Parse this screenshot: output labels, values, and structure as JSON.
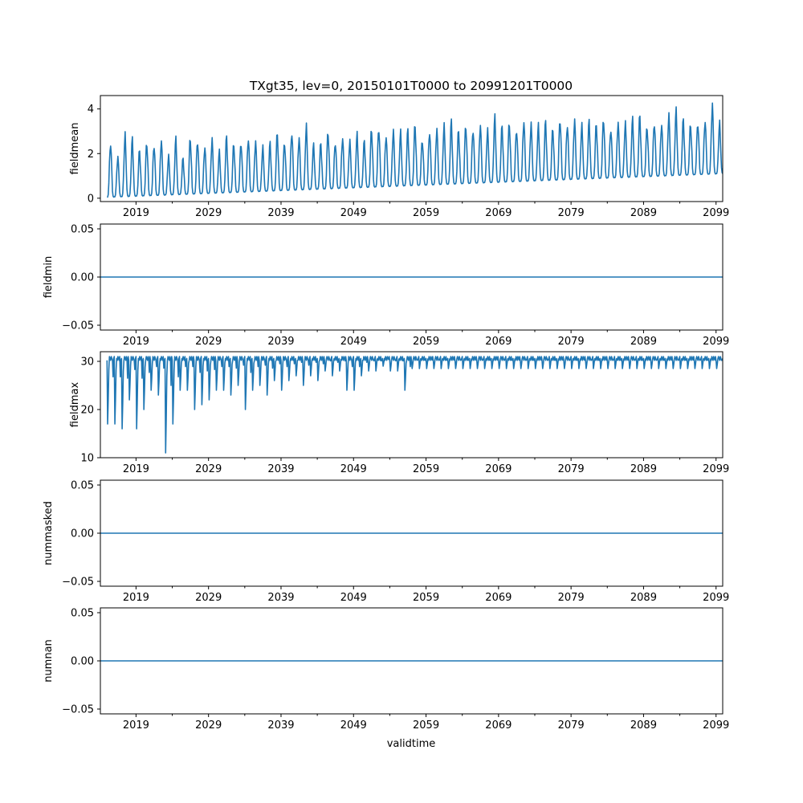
{
  "figure": {
    "title": "TXgt35, lev=0, 20150101T0000 to 20991201T0000",
    "xlabel": "validtime",
    "x_tick_labels": [
      "2019",
      "2029",
      "2039",
      "2049",
      "2059",
      "2069",
      "2079",
      "2089",
      "2099"
    ],
    "line_color": "#1f77b4"
  },
  "chart_data": [
    {
      "type": "line",
      "ylabel": "fieldmean",
      "ylim": [
        -0.15,
        4.6
      ],
      "yticks": [
        0,
        2,
        4
      ],
      "ytick_labels": [
        "0",
        "2",
        "4"
      ],
      "xlim": [
        "2014-02",
        "2099-12"
      ],
      "grid": false,
      "series": [
        {
          "frequency": "monthly, 2015-01 to 2099-12",
          "seasonal_peak_by_year": [
            {
              "year": 2015,
              "peak": 2.7
            },
            {
              "year": 2016,
              "peak": 2.0
            },
            {
              "year": 2017,
              "peak": 3.0
            },
            {
              "year": 2018,
              "peak": 2.8
            },
            {
              "year": 2019,
              "peak": 2.3
            },
            {
              "year": 2020,
              "peak": 2.7
            },
            {
              "year": 2021,
              "peak": 2.6
            },
            {
              "year": 2022,
              "peak": 2.8
            },
            {
              "year": 2023,
              "peak": 2.0
            },
            {
              "year": 2024,
              "peak": 2.8
            },
            {
              "year": 2025,
              "peak": 1.9
            },
            {
              "year": 2026,
              "peak": 2.9
            },
            {
              "year": 2027,
              "peak": 2.8
            },
            {
              "year": 2028,
              "peak": 2.5
            },
            {
              "year": 2029,
              "peak": 2.8
            },
            {
              "year": 2030,
              "peak": 2.2
            },
            {
              "year": 2031,
              "peak": 2.9
            },
            {
              "year": 2032,
              "peak": 2.6
            },
            {
              "year": 2033,
              "peak": 2.7
            },
            {
              "year": 2034,
              "peak": 2.9
            },
            {
              "year": 2035,
              "peak": 2.7
            },
            {
              "year": 2036,
              "peak": 2.4
            },
            {
              "year": 2037,
              "peak": 2.6
            },
            {
              "year": 2038,
              "peak": 3.1
            },
            {
              "year": 2039,
              "peak": 2.7
            },
            {
              "year": 2040,
              "peak": 3.2
            },
            {
              "year": 2041,
              "peak": 2.9
            },
            {
              "year": 2042,
              "peak": 3.4
            },
            {
              "year": 2043,
              "peak": 2.5
            },
            {
              "year": 2044,
              "peak": 2.6
            },
            {
              "year": 2045,
              "peak": 3.2
            },
            {
              "year": 2046,
              "peak": 2.7
            },
            {
              "year": 2047,
              "peak": 2.9
            },
            {
              "year": 2048,
              "peak": 2.7
            },
            {
              "year": 2049,
              "peak": 3.0
            },
            {
              "year": 2050,
              "peak": 2.7
            },
            {
              "year": 2051,
              "peak": 3.3
            },
            {
              "year": 2052,
              "peak": 3.4
            },
            {
              "year": 2053,
              "peak": 3.0
            },
            {
              "year": 2054,
              "peak": 3.2
            },
            {
              "year": 2055,
              "peak": 3.1
            },
            {
              "year": 2056,
              "peak": 3.2
            },
            {
              "year": 2057,
              "peak": 3.5
            },
            {
              "year": 2058,
              "peak": 2.8
            },
            {
              "year": 2059,
              "peak": 3.2
            },
            {
              "year": 2060,
              "peak": 3.3
            },
            {
              "year": 2061,
              "peak": 3.4
            },
            {
              "year": 2062,
              "peak": 3.6
            },
            {
              "year": 2063,
              "peak": 3.2
            },
            {
              "year": 2064,
              "peak": 3.5
            },
            {
              "year": 2065,
              "peak": 3.3
            },
            {
              "year": 2066,
              "peak": 3.5
            },
            {
              "year": 2067,
              "peak": 3.2
            },
            {
              "year": 2068,
              "peak": 3.8
            },
            {
              "year": 2069,
              "peak": 3.4
            },
            {
              "year": 2070,
              "peak": 3.6
            },
            {
              "year": 2071,
              "peak": 3.3
            },
            {
              "year": 2072,
              "peak": 3.7
            },
            {
              "year": 2073,
              "peak": 3.5
            },
            {
              "year": 2074,
              "peak": 3.4
            },
            {
              "year": 2075,
              "peak": 3.6
            },
            {
              "year": 2076,
              "peak": 3.3
            },
            {
              "year": 2077,
              "peak": 3.8
            },
            {
              "year": 2078,
              "peak": 3.5
            },
            {
              "year": 2079,
              "peak": 3.7
            },
            {
              "year": 2080,
              "peak": 3.4
            },
            {
              "year": 2081,
              "peak": 3.6
            },
            {
              "year": 2082,
              "peak": 3.5
            },
            {
              "year": 2083,
              "peak": 3.8
            },
            {
              "year": 2084,
              "peak": 3.3
            },
            {
              "year": 2085,
              "peak": 3.6
            },
            {
              "year": 2086,
              "peak": 3.5
            },
            {
              "year": 2087,
              "peak": 3.7
            },
            {
              "year": 2088,
              "peak": 3.9
            },
            {
              "year": 2089,
              "peak": 3.4
            },
            {
              "year": 2090,
              "peak": 3.6
            },
            {
              "year": 2091,
              "peak": 3.5
            },
            {
              "year": 2092,
              "peak": 3.9
            },
            {
              "year": 2093,
              "peak": 4.1
            },
            {
              "year": 2094,
              "peak": 3.7
            },
            {
              "year": 2095,
              "peak": 3.5
            },
            {
              "year": 2096,
              "peak": 3.6
            },
            {
              "year": 2097,
              "peak": 3.7
            },
            {
              "year": 2098,
              "peak": 4.4
            },
            {
              "year": 2099,
              "peak": 3.5
            }
          ],
          "seasonal_trough_start": 0.05,
          "seasonal_trough_end": 1.1
        }
      ]
    },
    {
      "type": "line",
      "ylabel": "fieldmin",
      "ylim": [
        -0.055,
        0.055
      ],
      "yticks": [
        -0.05,
        0,
        0.05
      ],
      "ytick_labels": [
        "−0.05",
        "0.00",
        "0.05"
      ],
      "xlim": [
        "2014-02",
        "2099-12"
      ],
      "grid": false,
      "series": [
        {
          "constant": 0
        }
      ]
    },
    {
      "type": "line",
      "ylabel": "fieldmax",
      "ylim": [
        10,
        32
      ],
      "yticks": [
        10,
        20,
        30
      ],
      "ytick_labels": [
        "10",
        "20",
        "30"
      ],
      "xlim": [
        "2014-02",
        "2099-12"
      ],
      "grid": false,
      "series": [
        {
          "frequency": "monthly, 2015-01 to 2099-12",
          "typical_high": 31,
          "annual_minimum_by_year": [
            {
              "year": 2015,
              "min": 17
            },
            {
              "year": 2016,
              "min": 17
            },
            {
              "year": 2017,
              "min": 16
            },
            {
              "year": 2018,
              "min": 22
            },
            {
              "year": 2019,
              "min": 16
            },
            {
              "year": 2020,
              "min": 20
            },
            {
              "year": 2021,
              "min": 24
            },
            {
              "year": 2022,
              "min": 23
            },
            {
              "year": 2023,
              "min": 11
            },
            {
              "year": 2024,
              "min": 17
            },
            {
              "year": 2025,
              "min": 24
            },
            {
              "year": 2026,
              "min": 24
            },
            {
              "year": 2027,
              "min": 20
            },
            {
              "year": 2028,
              "min": 21
            },
            {
              "year": 2029,
              "min": 22
            },
            {
              "year": 2030,
              "min": 24
            },
            {
              "year": 2031,
              "min": 24
            },
            {
              "year": 2032,
              "min": 23
            },
            {
              "year": 2033,
              "min": 25
            },
            {
              "year": 2034,
              "min": 20
            },
            {
              "year": 2035,
              "min": 24
            },
            {
              "year": 2036,
              "min": 25
            },
            {
              "year": 2037,
              "min": 23
            },
            {
              "year": 2038,
              "min": 26
            },
            {
              "year": 2039,
              "min": 24
            },
            {
              "year": 2040,
              "min": 26
            },
            {
              "year": 2041,
              "min": 27
            },
            {
              "year": 2042,
              "min": 25
            },
            {
              "year": 2043,
              "min": 27
            },
            {
              "year": 2044,
              "min": 26
            },
            {
              "year": 2045,
              "min": 28
            },
            {
              "year": 2046,
              "min": 27
            },
            {
              "year": 2047,
              "min": 28
            },
            {
              "year": 2048,
              "min": 24
            },
            {
              "year": 2049,
              "min": 24
            },
            {
              "year": 2050,
              "min": 27
            },
            {
              "year": 2051,
              "min": 28
            },
            {
              "year": 2052,
              "min": 28
            },
            {
              "year": 2053,
              "min": 29
            },
            {
              "year": 2054,
              "min": 28
            },
            {
              "year": 2055,
              "min": 28
            },
            {
              "year": 2056,
              "min": 24
            }
          ],
          "annual_minimum_after_2056": 28.5
        }
      ]
    },
    {
      "type": "line",
      "ylabel": "nummasked",
      "ylim": [
        -0.055,
        0.055
      ],
      "yticks": [
        -0.05,
        0,
        0.05
      ],
      "ytick_labels": [
        "−0.05",
        "0.00",
        "0.05"
      ],
      "xlim": [
        "2014-02",
        "2099-12"
      ],
      "grid": false,
      "series": [
        {
          "constant": 0
        }
      ]
    },
    {
      "type": "line",
      "ylabel": "numnan",
      "ylim": [
        -0.055,
        0.055
      ],
      "yticks": [
        -0.05,
        0,
        0.05
      ],
      "ytick_labels": [
        "−0.05",
        "0.00",
        "0.05"
      ],
      "xlim": [
        "2014-02",
        "2099-12"
      ],
      "grid": false,
      "series": [
        {
          "constant": 0
        }
      ]
    }
  ]
}
